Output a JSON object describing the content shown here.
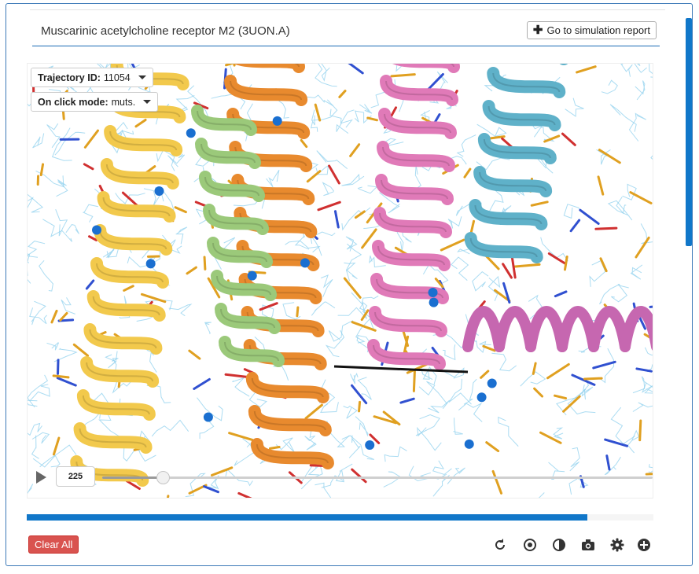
{
  "panel": {
    "title": "Muscarinic acetylcholine receptor M2 (3UON.A)",
    "report_button": "Go to simulation report"
  },
  "viewer": {
    "trajectory": {
      "label": "Trajectory ID:",
      "value": "11054"
    },
    "click_mode": {
      "label": "On click mode:",
      "value": "muts."
    },
    "player": {
      "frame": "225",
      "progress": 0.11
    },
    "loading_progress": 0.895
  },
  "footer": {
    "clear_label": "Clear All",
    "tools": [
      "reset-icon",
      "center-icon",
      "contrast-icon",
      "camera-icon",
      "gear-icon",
      "plus-circle-icon"
    ]
  },
  "colors": {
    "accent": "#1177c9",
    "danger": "#d9534f",
    "helix_yellow": "#f2c94c",
    "helix_orange": "#e88a2e",
    "helix_green": "#9bc97a",
    "helix_pink": "#e07ab8",
    "helix_teal": "#5fb1c9",
    "helix_magenta": "#c667b0",
    "mesh": "#8fd0ee",
    "sticks": "#e0a020"
  }
}
